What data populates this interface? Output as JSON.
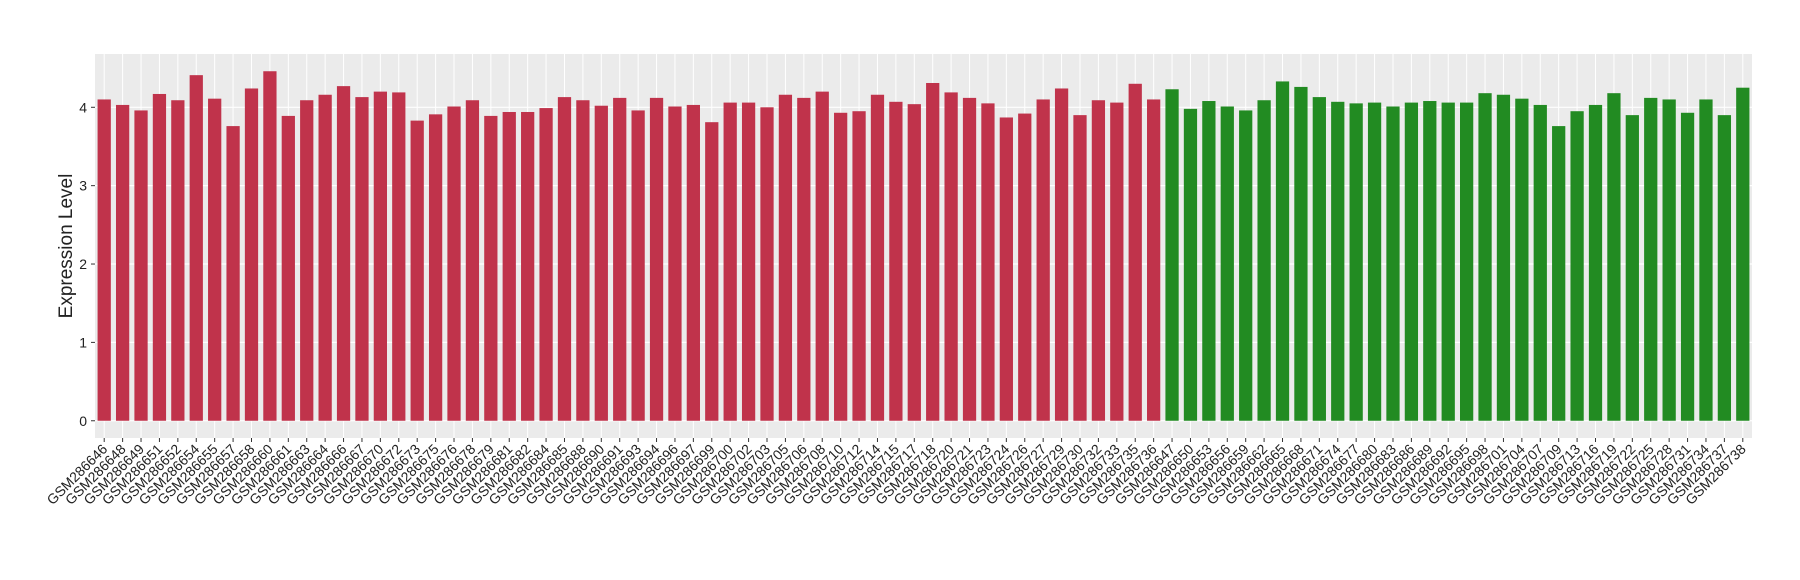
{
  "chart_data": {
    "type": "bar",
    "y_label": "Expression Level",
    "ylim": [
      -0.22,
      4.68
    ],
    "yticks": [
      0,
      1,
      2,
      3,
      4
    ],
    "grid": true,
    "series": [
      {
        "color": "#c0334b",
        "categories": [
          "GSM286646",
          "GSM286648",
          "GSM286649",
          "GSM286651",
          "GSM286652",
          "GSM286654",
          "GSM286655",
          "GSM286657",
          "GSM286658",
          "GSM286660",
          "GSM286661",
          "GSM286663",
          "GSM286664",
          "GSM286666",
          "GSM286667",
          "GSM286670",
          "GSM286672",
          "GSM286673",
          "GSM286675",
          "GSM286676",
          "GSM286678",
          "GSM286679",
          "GSM286681",
          "GSM286682",
          "GSM286684",
          "GSM286685",
          "GSM286688",
          "GSM286690",
          "GSM286691",
          "GSM286693",
          "GSM286694",
          "GSM286696",
          "GSM286697",
          "GSM286699",
          "GSM286700",
          "GSM286702",
          "GSM286703",
          "GSM286705",
          "GSM286706",
          "GSM286708",
          "GSM286710",
          "GSM286712",
          "GSM286714",
          "GSM286715",
          "GSM286717",
          "GSM286718",
          "GSM286720",
          "GSM286721",
          "GSM286723",
          "GSM286724",
          "GSM286726",
          "GSM286727",
          "GSM286729",
          "GSM286730",
          "GSM286732",
          "GSM286733",
          "GSM286735",
          "GSM286736"
        ],
        "values": [
          4.1,
          4.03,
          3.96,
          4.17,
          4.09,
          4.41,
          4.11,
          3.76,
          4.24,
          4.46,
          3.89,
          4.09,
          4.16,
          4.27,
          4.13,
          4.2,
          4.19,
          3.83,
          3.91,
          4.01,
          4.09,
          3.89,
          3.94,
          3.94,
          3.99,
          4.13,
          4.09,
          4.02,
          4.12,
          3.96,
          4.12,
          4.01,
          4.03,
          3.81,
          4.06,
          4.06,
          4.0,
          4.16,
          4.12,
          4.2,
          3.93,
          3.95,
          4.16,
          4.07,
          4.04,
          4.31,
          4.19,
          4.12,
          4.05,
          3.87,
          3.92,
          4.1,
          4.24,
          3.9,
          4.09,
          4.06,
          4.3,
          4.1
        ]
      },
      {
        "color": "#228b22",
        "categories": [
          "GSM286647",
          "GSM286650",
          "GSM286653",
          "GSM286656",
          "GSM286659",
          "GSM286662",
          "GSM286665",
          "GSM286668",
          "GSM286671",
          "GSM286674",
          "GSM286677",
          "GSM286680",
          "GSM286683",
          "GSM286686",
          "GSM286689",
          "GSM286692",
          "GSM286695",
          "GSM286698",
          "GSM286701",
          "GSM286704",
          "GSM286707",
          "GSM286709",
          "GSM286713",
          "GSM286716",
          "GSM286719",
          "GSM286722",
          "GSM286725",
          "GSM286728",
          "GSM286731",
          "GSM286734",
          "GSM286737",
          "GSM286738"
        ],
        "values": [
          4.23,
          3.98,
          4.08,
          4.01,
          3.96,
          4.09,
          4.33,
          4.26,
          4.13,
          4.07,
          4.05,
          4.06,
          4.01,
          4.06,
          4.08,
          4.06,
          4.06,
          4.18,
          4.16,
          4.11,
          4.03,
          3.76,
          3.95,
          4.03,
          4.18,
          3.9,
          4.12,
          4.1,
          3.93,
          4.1,
          3.9,
          4.25
        ]
      }
    ]
  }
}
